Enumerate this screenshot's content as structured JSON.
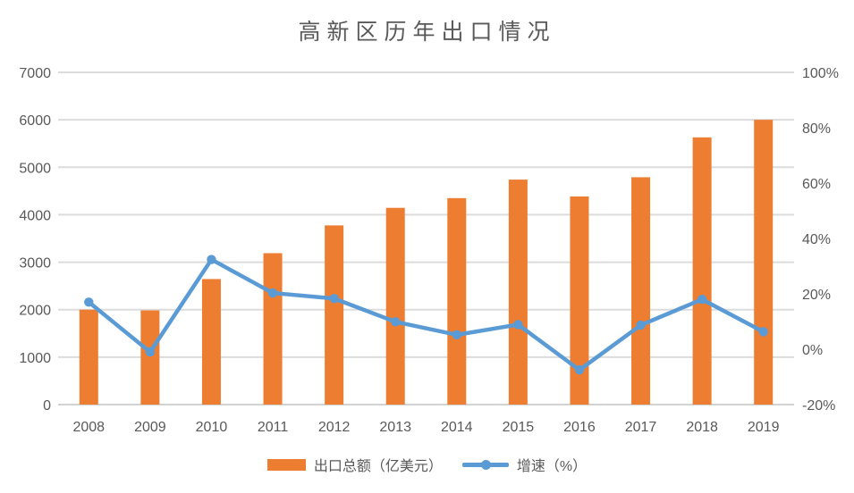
{
  "page": {
    "background": "#ffffff"
  },
  "chart_data": {
    "type": "combo_bar_line",
    "title": "高新区历年出口情况",
    "categories": [
      "2008",
      "2009",
      "2010",
      "2011",
      "2012",
      "2013",
      "2014",
      "2015",
      "2016",
      "2017",
      "2018",
      "2019"
    ],
    "series": [
      {
        "name": "出口总额（亿美元）",
        "type": "bar",
        "axis": "left",
        "color": "#ED7D31",
        "values": [
          2000,
          1985,
          2645,
          3190,
          3775,
          4145,
          4350,
          4740,
          4385,
          4790,
          5630,
          6000
        ]
      },
      {
        "name": "增速（%）",
        "type": "line",
        "axis": "right",
        "color": "#5B9BD5",
        "values": [
          17.0,
          -1.0,
          32.4,
          20.3,
          18.3,
          9.9,
          5.2,
          8.9,
          -7.5,
          8.7,
          18.0,
          6.3
        ]
      }
    ],
    "left_axis": {
      "min": 0,
      "max": 7000,
      "step": 1000,
      "tick_labels": [
        "7000",
        "6000",
        "5000",
        "4000",
        "3000",
        "2000",
        "1000",
        "0"
      ]
    },
    "right_axis": {
      "min": -20,
      "max": 100,
      "step": 20,
      "tick_labels": [
        "100%",
        "80%",
        "60%",
        "40%",
        "20%",
        "0%",
        "-20%"
      ]
    },
    "grid": true,
    "legend_position": "bottom",
    "colors": {
      "grid": "#DCDCDC",
      "axis_line": "#D2D2D2",
      "tick_text": "#595959",
      "title_text": "#595959"
    }
  }
}
